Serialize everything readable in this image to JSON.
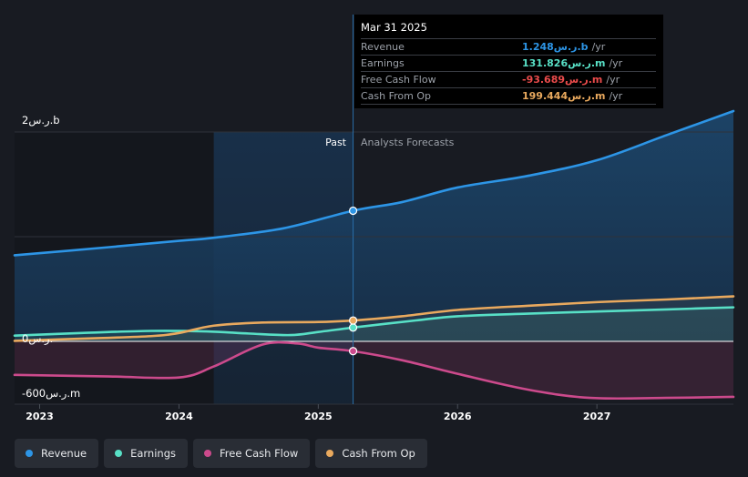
{
  "chart_data": {
    "type": "line",
    "x_ticks": [
      "2023",
      "2024",
      "2025",
      "2026",
      "2027"
    ],
    "y_labels": {
      "top": "2ر.س.b",
      "zero": "0ر.س.",
      "bottom": "-600ر.س.m"
    },
    "ylim_millions": [
      -600,
      2000
    ],
    "divider_labels": {
      "past": "Past",
      "forecast": "Analysts Forecasts"
    },
    "x_range": [
      2022.82,
      2027.98
    ],
    "past_shade_start": 2024.25,
    "past_end": 2025.25,
    "series": [
      {
        "name": "Revenue",
        "color": "#2d95e6",
        "points": [
          [
            2022.82,
            822
          ],
          [
            2023.5,
            900
          ],
          [
            2024.0,
            960
          ],
          [
            2024.25,
            990
          ],
          [
            2024.75,
            1080
          ],
          [
            2025.25,
            1248
          ],
          [
            2025.6,
            1330
          ],
          [
            2026.0,
            1470
          ],
          [
            2026.5,
            1580
          ],
          [
            2027.0,
            1730
          ],
          [
            2027.5,
            1970
          ],
          [
            2027.98,
            2210
          ]
        ]
      },
      {
        "name": "Earnings",
        "color": "#58e0c6",
        "points": [
          [
            2022.82,
            55
          ],
          [
            2023.3,
            80
          ],
          [
            2023.8,
            100
          ],
          [
            2024.2,
            95
          ],
          [
            2024.5,
            75
          ],
          [
            2024.8,
            60
          ],
          [
            2025.0,
            90
          ],
          [
            2025.25,
            131.826
          ],
          [
            2025.7,
            200
          ],
          [
            2026.0,
            240
          ],
          [
            2026.5,
            265
          ],
          [
            2027.0,
            285
          ],
          [
            2027.5,
            305
          ],
          [
            2027.98,
            325
          ]
        ]
      },
      {
        "name": "Free Cash Flow",
        "color": "#cc4a8c",
        "points": [
          [
            2022.82,
            -320
          ],
          [
            2023.5,
            -335
          ],
          [
            2024.0,
            -345
          ],
          [
            2024.25,
            -240
          ],
          [
            2024.6,
            -30
          ],
          [
            2024.85,
            -20
          ],
          [
            2025.0,
            -60
          ],
          [
            2025.25,
            -93.689
          ],
          [
            2025.6,
            -180
          ],
          [
            2026.0,
            -310
          ],
          [
            2026.5,
            -460
          ],
          [
            2026.95,
            -540
          ],
          [
            2027.5,
            -540
          ],
          [
            2027.98,
            -530
          ]
        ]
      },
      {
        "name": "Cash From Op",
        "color": "#e9a95e",
        "points": [
          [
            2022.82,
            5
          ],
          [
            2023.4,
            30
          ],
          [
            2023.8,
            50
          ],
          [
            2024.0,
            80
          ],
          [
            2024.25,
            150
          ],
          [
            2024.6,
            180
          ],
          [
            2025.0,
            185
          ],
          [
            2025.25,
            199.444
          ],
          [
            2025.6,
            240
          ],
          [
            2026.0,
            300
          ],
          [
            2026.5,
            340
          ],
          [
            2027.0,
            375
          ],
          [
            2027.5,
            400
          ],
          [
            2027.98,
            430
          ]
        ]
      }
    ]
  },
  "tooltip": {
    "date": "Mar 31 2025",
    "rows": [
      {
        "label": "Revenue",
        "value": "1.248ر.س.b",
        "unit": "/yr",
        "color": "#2d95e6"
      },
      {
        "label": "Earnings",
        "value": "131.826ر.س.m",
        "unit": "/yr",
        "color": "#58e0c6"
      },
      {
        "label": "Free Cash Flow",
        "value": "-93.689ر.س.m",
        "unit": "/yr",
        "color": "#ea4b4b"
      },
      {
        "label": "Cash From Op",
        "value": "199.444ر.س.m",
        "unit": "/yr",
        "color": "#e9a95e"
      }
    ]
  },
  "legend": [
    {
      "label": "Revenue",
      "color": "#2d95e6"
    },
    {
      "label": "Earnings",
      "color": "#58e0c6"
    },
    {
      "label": "Free Cash Flow",
      "color": "#cc4a8c"
    },
    {
      "label": "Cash From Op",
      "color": "#e9a95e"
    }
  ]
}
